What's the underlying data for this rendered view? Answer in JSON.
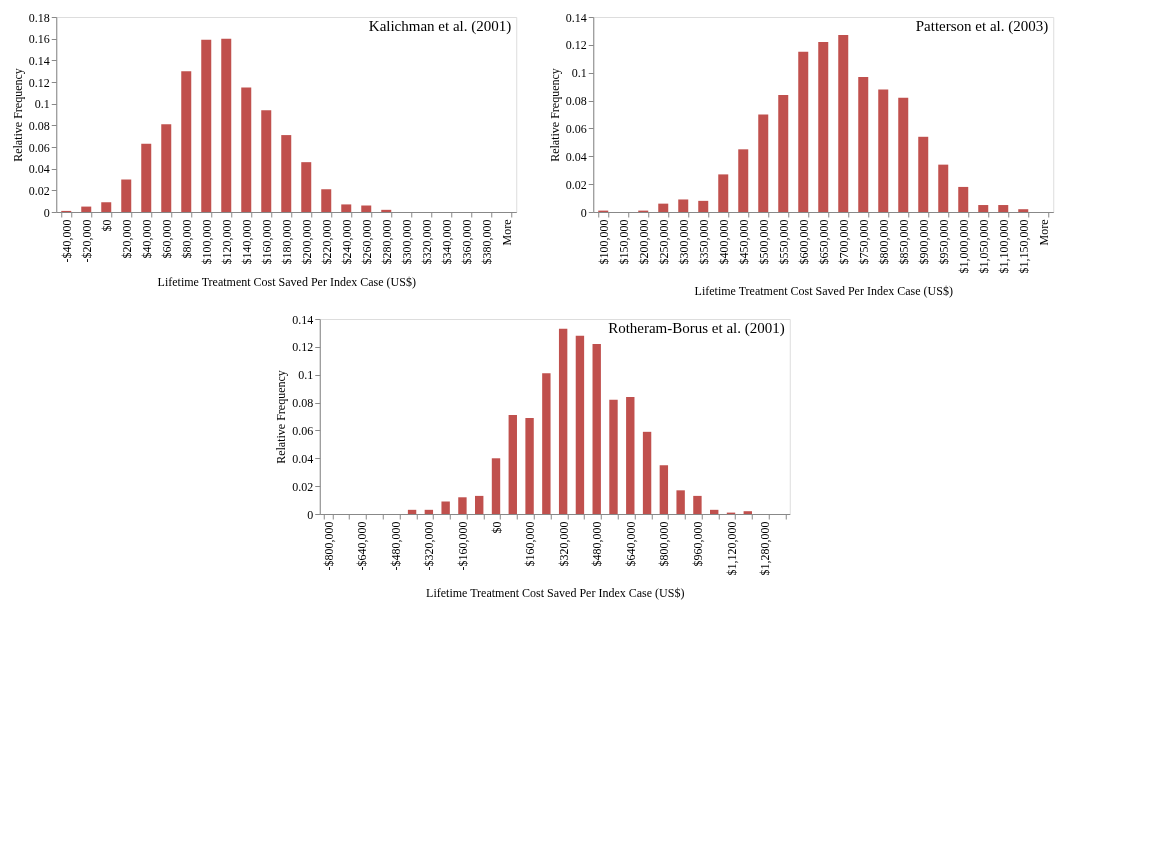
{
  "chart_data": [
    {
      "type": "bar",
      "title": "Kalichman et al. (2001)",
      "xlabel": "Lifetime Treatment Cost Saved Per Index Case (US$)",
      "ylabel": "Relative Frequency",
      "color": "#c0504d",
      "ylim": [
        0,
        0.18
      ],
      "yticks": [
        0,
        0.02,
        0.04,
        0.06,
        0.08,
        0.1,
        0.12,
        0.14,
        0.16,
        0.18
      ],
      "grid": false,
      "categories": [
        "-$40,000",
        "-$20,000",
        "$0",
        "$20,000",
        "$40,000",
        "$60,000",
        "$80,000",
        "$100,000",
        "$120,000",
        "$140,000",
        "$160,000",
        "$180,000",
        "$200,000",
        "$220,000",
        "$240,000",
        "$260,000",
        "$280,000",
        "$300,000",
        "$320,000",
        "$340,000",
        "$360,000",
        "$380,000",
        "More"
      ],
      "values": [
        0.001,
        0.005,
        0.009,
        0.03,
        0.063,
        0.081,
        0.13,
        0.159,
        0.16,
        0.115,
        0.094,
        0.071,
        0.046,
        0.021,
        0.007,
        0.006,
        0.002,
        0,
        0,
        0,
        0,
        0,
        0
      ]
    },
    {
      "type": "bar",
      "title": "Patterson et al. (2003)",
      "xlabel": "Lifetime Treatment Cost Saved Per Index Case (US$)",
      "ylabel": "Relative Frequency",
      "color": "#c0504d",
      "ylim": [
        0,
        0.14
      ],
      "yticks": [
        0,
        0.02,
        0.04,
        0.06,
        0.08,
        0.1,
        0.12,
        0.14
      ],
      "grid": false,
      "categories": [
        "$100,000",
        "$150,000",
        "$200,000",
        "$250,000",
        "$300,000",
        "$350,000",
        "$400,000",
        "$450,000",
        "$500,000",
        "$550,000",
        "$600,000",
        "$650,000",
        "$700,000",
        "$750,000",
        "$800,000",
        "$850,000",
        "$900,000",
        "$950,000",
        "$1,000,000",
        "$1,050,000",
        "$1,100,000",
        "$1,150,000",
        "More"
      ],
      "values": [
        0.001,
        0,
        0.001,
        0.006,
        0.009,
        0.008,
        0.027,
        0.045,
        0.07,
        0.084,
        0.115,
        0.122,
        0.127,
        0.097,
        0.088,
        0.082,
        0.054,
        0.034,
        0.018,
        0.005,
        0.005,
        0.002,
        0
      ]
    },
    {
      "type": "bar",
      "title": "Rotheram-Borus et al. (2001)",
      "xlabel": "Lifetime Treatment Cost Saved Per Index Case (US$)",
      "ylabel": "Relative Frequency",
      "color": "#c0504d",
      "ylim": [
        0,
        0.14
      ],
      "yticks": [
        0,
        0.02,
        0.04,
        0.06,
        0.08,
        0.1,
        0.12,
        0.14
      ],
      "grid": false,
      "categories": [
        "-$800,000",
        null,
        "-$640,000",
        null,
        "-$480,000",
        null,
        "-$320,000",
        null,
        "-$160,000",
        null,
        "$0",
        null,
        "$160,000",
        null,
        "$320,000",
        null,
        "$480,000",
        null,
        "$640,000",
        null,
        "$800,000",
        null,
        "$960,000",
        null,
        "$1,120,000",
        null,
        "$1,280,000",
        null
      ],
      "values": [
        0,
        0,
        0,
        0,
        0,
        0.003,
        0.003,
        0.009,
        0.012,
        0.013,
        0.04,
        0.071,
        0.069,
        0.101,
        0.133,
        0.128,
        0.122,
        0.082,
        0.084,
        0.059,
        0.035,
        0.017,
        0.013,
        0.003,
        0.001,
        0.002,
        0,
        0
      ]
    }
  ]
}
